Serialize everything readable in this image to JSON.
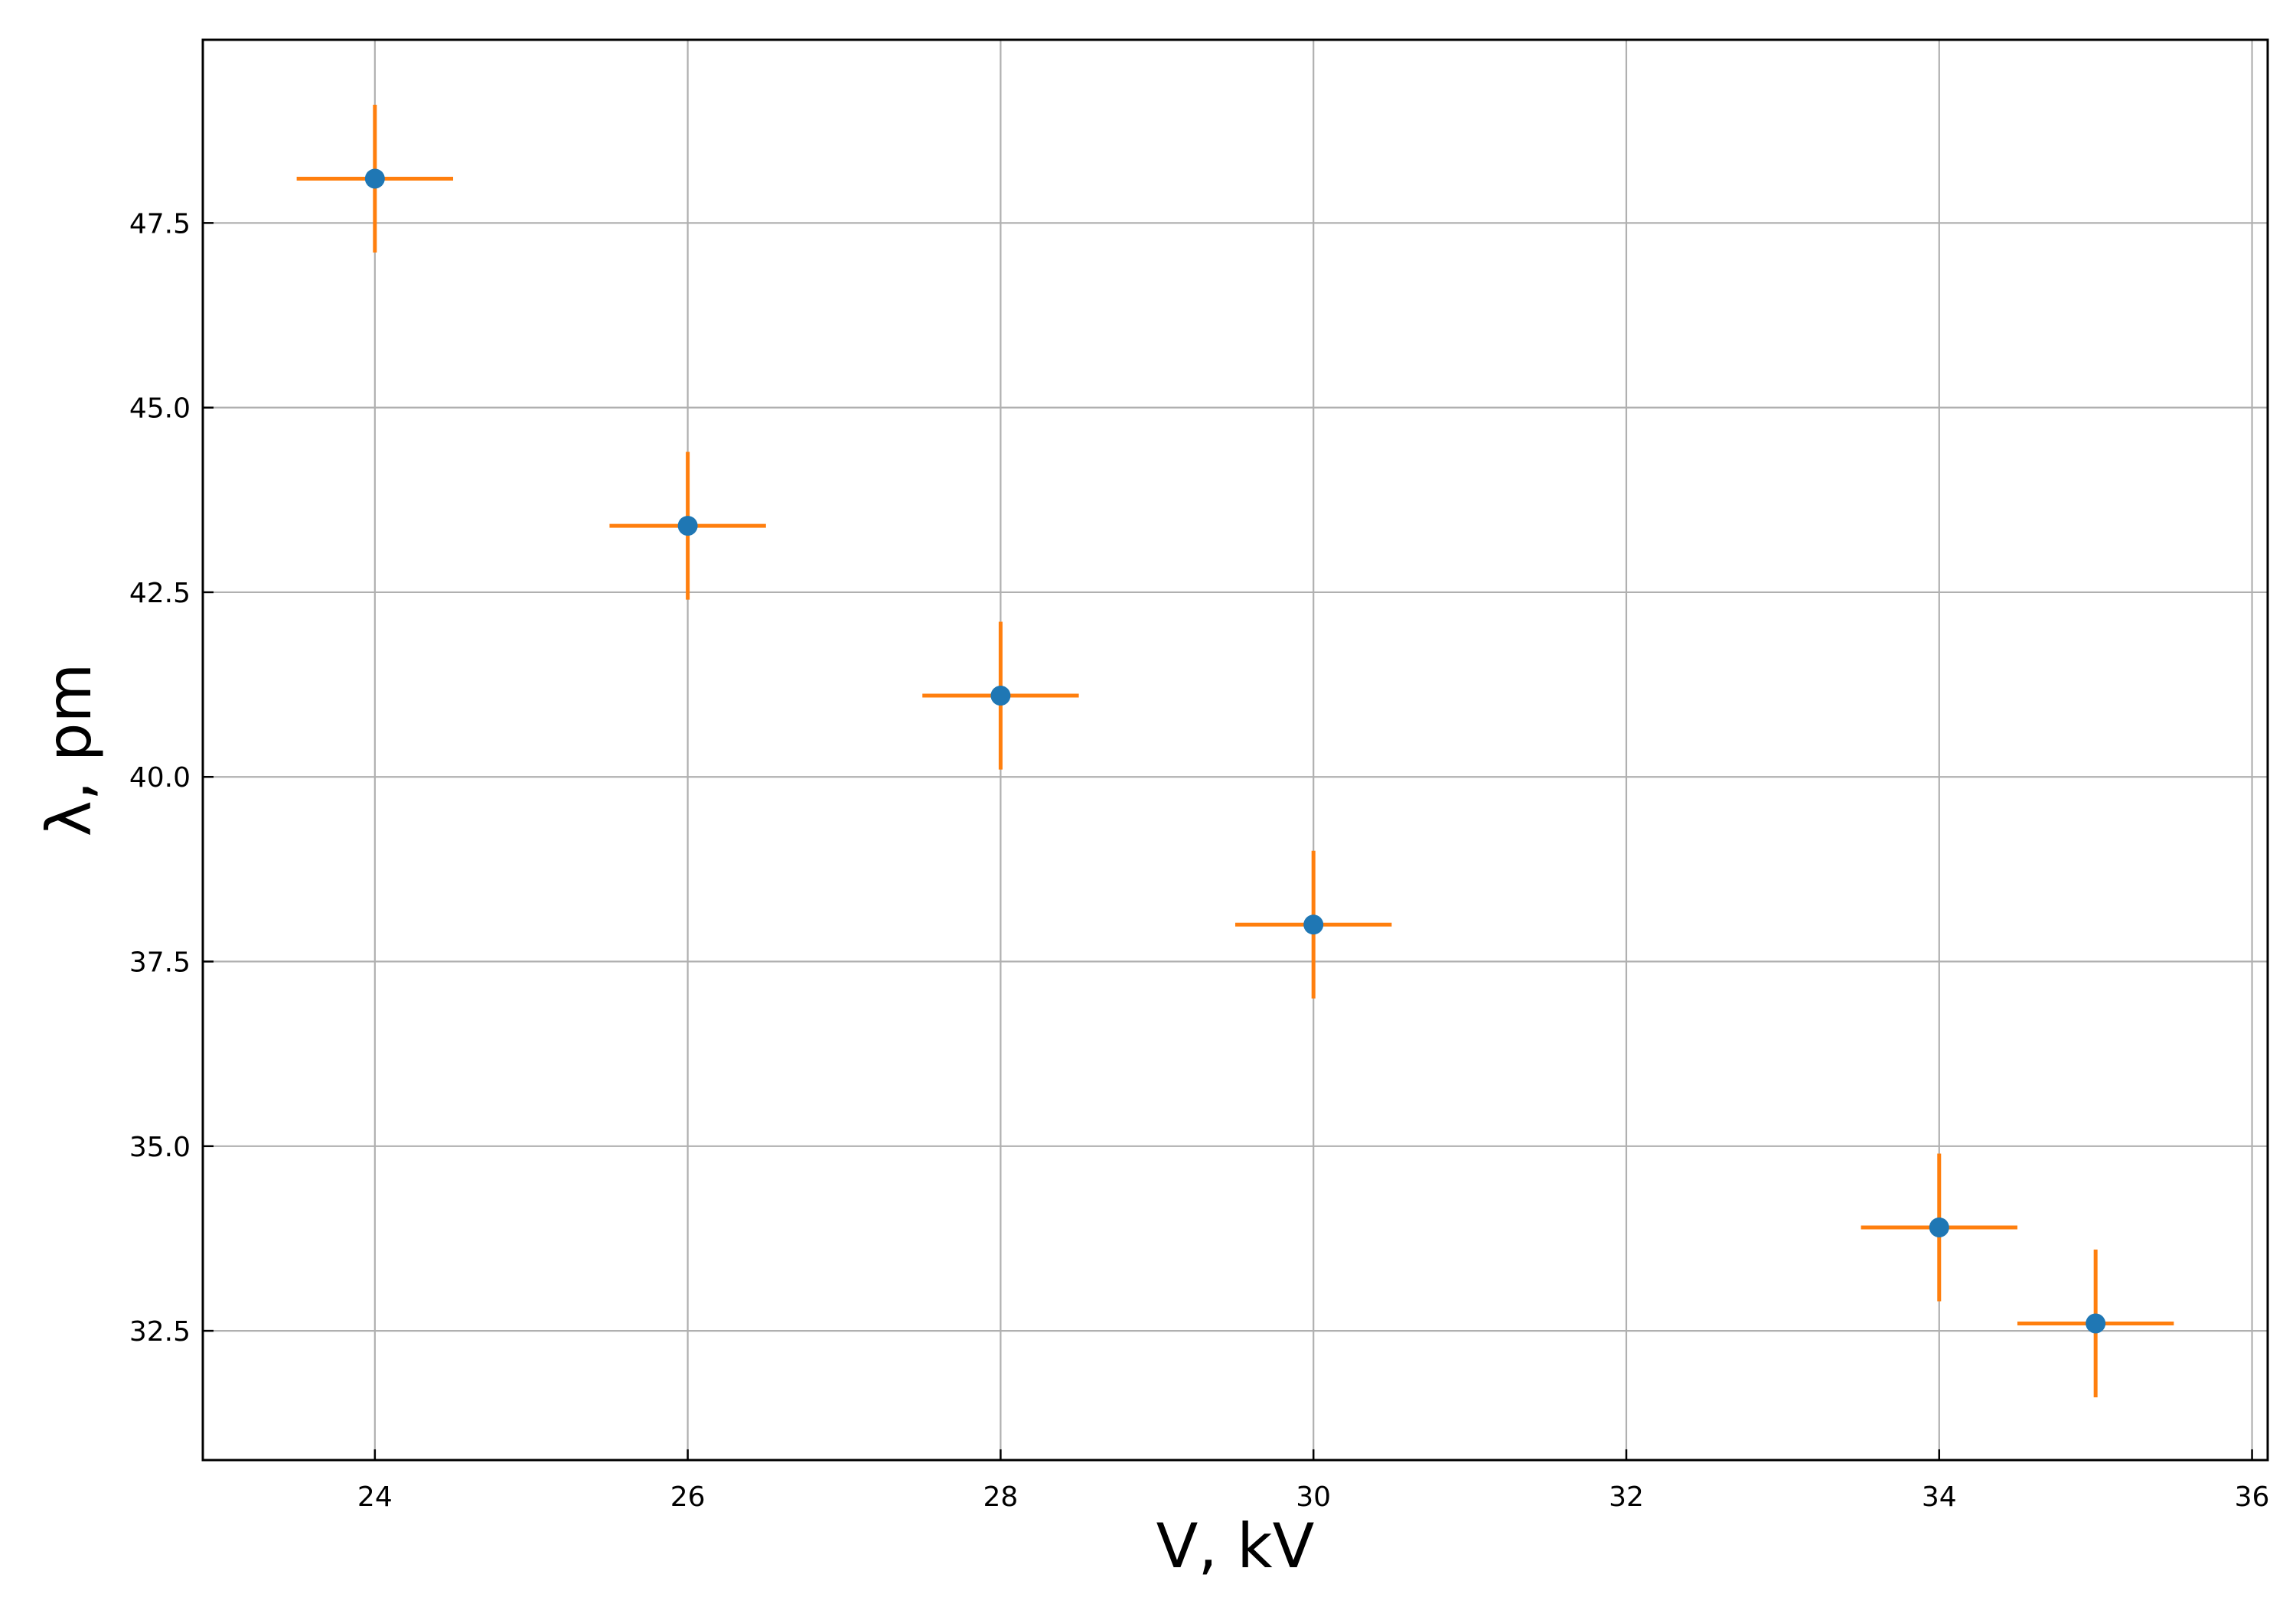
{
  "chart_data": {
    "type": "scatter",
    "xlabel": "V, kV",
    "ylabel": "λ, pm",
    "xlim": [
      22.9,
      36.1
    ],
    "ylim": [
      30.75,
      49.98
    ],
    "grid": true,
    "x_ticks": [
      24,
      26,
      28,
      30,
      32,
      34,
      36
    ],
    "x_tick_labels": [
      "24",
      "26",
      "28",
      "30",
      "32",
      "34",
      "36"
    ],
    "y_ticks": [
      32.5,
      35.0,
      37.5,
      40.0,
      42.5,
      45.0,
      47.5
    ],
    "y_tick_labels": [
      "32.5",
      "35.0",
      "37.5",
      "40.0",
      "42.5",
      "45.0",
      "47.5"
    ],
    "series": [
      {
        "x": [
          24,
          26,
          28,
          30,
          34,
          35
        ],
        "y": [
          48.1,
          43.4,
          41.1,
          38.0,
          33.9,
          32.6
        ],
        "x_err": [
          0.5,
          0.5,
          0.5,
          0.5,
          0.5,
          0.5
        ],
        "y_err": [
          1.0,
          1.0,
          1.0,
          1.0,
          1.0,
          1.0
        ]
      }
    ],
    "colors": {
      "marker": "#1f77b4",
      "errorbar": "#ff7f0e",
      "grid": "#b0b0b0",
      "axes": "#000000"
    }
  }
}
